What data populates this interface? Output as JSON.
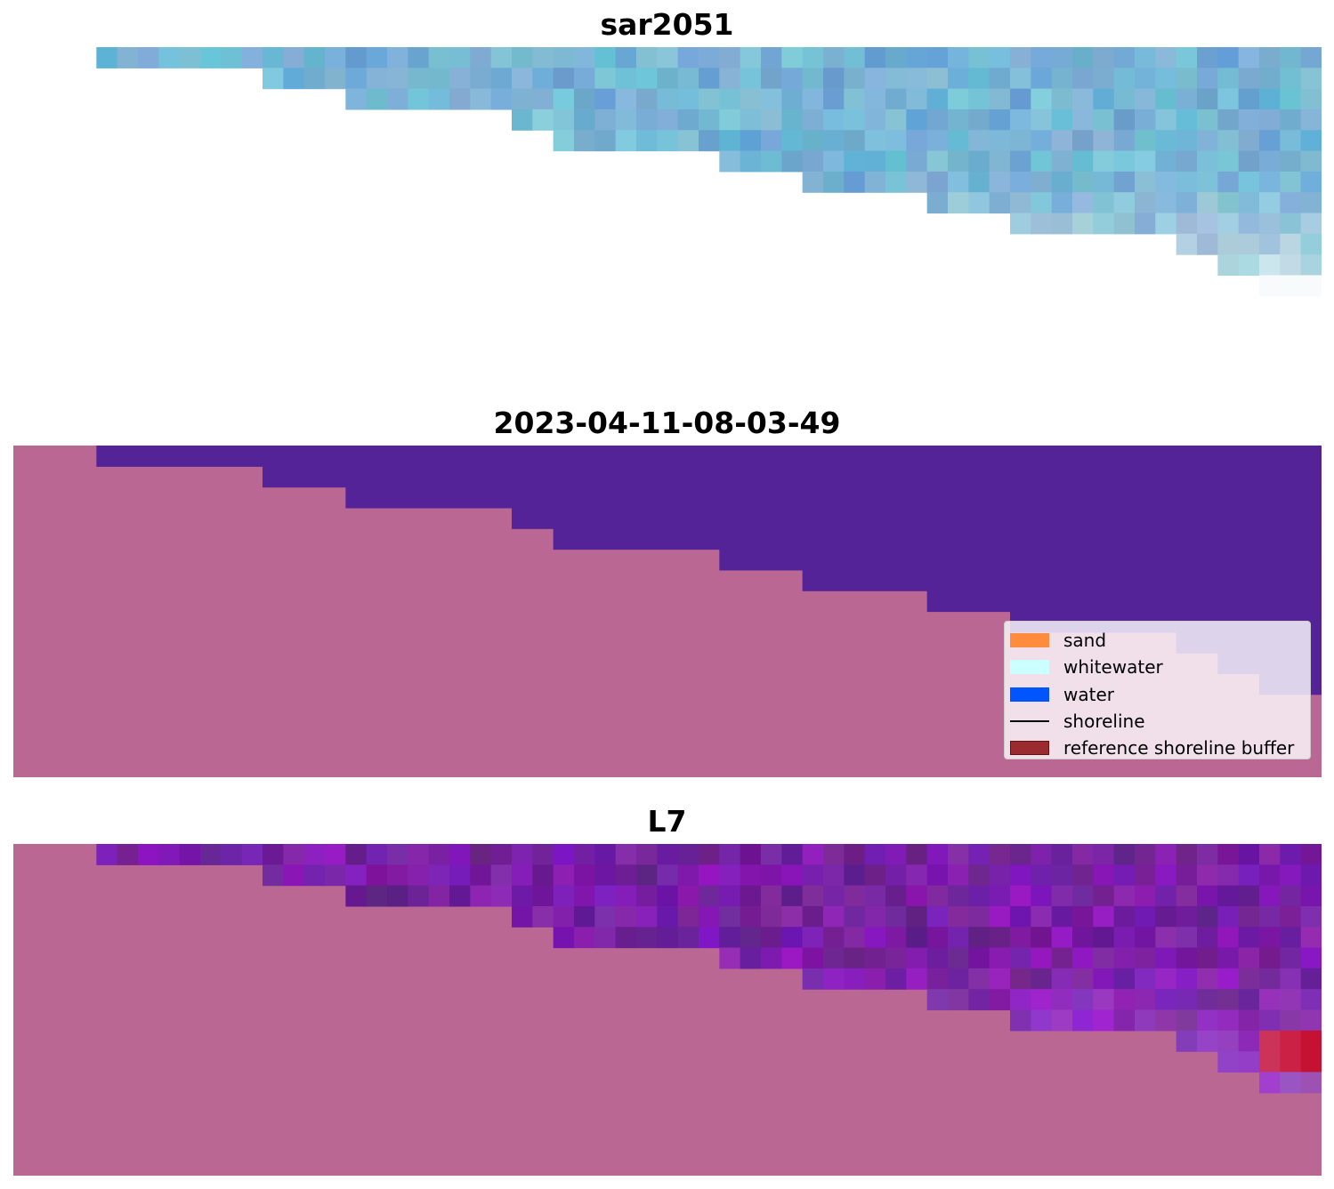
{
  "panels": [
    {
      "title": "sar2051"
    },
    {
      "title": "2023-04-11-08-03-49"
    },
    {
      "title": "L7"
    }
  ],
  "colors": {
    "land": "#bb6794",
    "water_class": "#542398",
    "legend_bg": "#ffffff"
  },
  "legend": {
    "items": [
      {
        "label": "sand",
        "color": "#ff8c3c",
        "kind": "swatch"
      },
      {
        "label": "whitewater",
        "color": "#ccffff",
        "kind": "swatch"
      },
      {
        "label": "water",
        "color": "#0055ff",
        "kind": "swatch"
      },
      {
        "label": "shoreline",
        "color": "#000000",
        "kind": "line"
      },
      {
        "label": "reference shoreline buffer",
        "color": "#9a2b2f",
        "kind": "swatch"
      }
    ]
  }
}
